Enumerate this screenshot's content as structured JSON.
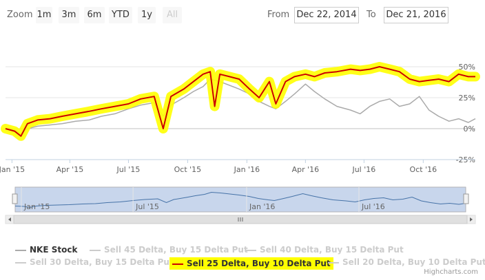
{
  "rangeSelector": {
    "zoom_label": "Zoom",
    "buttons": [
      {
        "label": "1m",
        "enabled": true
      },
      {
        "label": "3m",
        "enabled": true
      },
      {
        "label": "6m",
        "enabled": true
      },
      {
        "label": "YTD",
        "enabled": true
      },
      {
        "label": "1y",
        "enabled": true
      },
      {
        "label": "All",
        "enabled": false
      }
    ],
    "from_label": "From",
    "from_value": "Dec 22, 2014",
    "to_label": "To",
    "to_value": "Dec 21, 2016"
  },
  "chart_data": {
    "type": "line",
    "x_start": "2014-12-22",
    "x_end": "2016-12-21",
    "y_ticks": [
      -25,
      0,
      25,
      50
    ],
    "y_tick_labels": [
      "-25%",
      "0%",
      "25%",
      "50%"
    ],
    "ylim": [
      -25,
      50
    ],
    "x_ticks": [
      {
        "date": "2015-01-01",
        "label": "Jan '15"
      },
      {
        "date": "2015-04-01",
        "label": "Apr '15"
      },
      {
        "date": "2015-07-01",
        "label": "Jul '15"
      },
      {
        "date": "2015-10-01",
        "label": "Oct '15"
      },
      {
        "date": "2016-01-01",
        "label": "Jan '16"
      },
      {
        "date": "2016-04-01",
        "label": "Apr '16"
      },
      {
        "date": "2016-07-01",
        "label": "Jul '16"
      },
      {
        "date": "2016-10-01",
        "label": "Oct '16"
      }
    ],
    "navigator_ticks": [
      {
        "date": "2015-01-01",
        "label": "Jan '15"
      },
      {
        "date": "2015-07-01",
        "label": "Jul '15"
      },
      {
        "date": "2016-01-01",
        "label": "Jan '16"
      },
      {
        "date": "2016-07-01",
        "label": "Jul '16"
      }
    ],
    "grid": true,
    "legend_position": "bottom",
    "series": [
      {
        "name": "NKE Stock",
        "color": "#aaaaaa",
        "visible": true,
        "points": [
          [
            "2014-12-22",
            0
          ],
          [
            "2015-01-05",
            -1
          ],
          [
            "2015-01-15",
            -4
          ],
          [
            "2015-01-25",
            0
          ],
          [
            "2015-02-10",
            2
          ],
          [
            "2015-03-01",
            3
          ],
          [
            "2015-03-20",
            4
          ],
          [
            "2015-04-10",
            6
          ],
          [
            "2015-05-01",
            7
          ],
          [
            "2015-05-20",
            10
          ],
          [
            "2015-06-10",
            12
          ],
          [
            "2015-07-01",
            16
          ],
          [
            "2015-07-20",
            19
          ],
          [
            "2015-08-10",
            21
          ],
          [
            "2015-08-24",
            10
          ],
          [
            "2015-09-05",
            19
          ],
          [
            "2015-09-25",
            25
          ],
          [
            "2015-10-10",
            30
          ],
          [
            "2015-10-25",
            34
          ],
          [
            "2015-11-05",
            40
          ],
          [
            "2015-11-20",
            38
          ],
          [
            "2015-12-05",
            35
          ],
          [
            "2015-12-20",
            32
          ],
          [
            "2016-01-05",
            28
          ],
          [
            "2016-01-20",
            22
          ],
          [
            "2016-02-05",
            18
          ],
          [
            "2016-02-15",
            16
          ],
          [
            "2016-03-01",
            22
          ],
          [
            "2016-03-15",
            28
          ],
          [
            "2016-04-01",
            36
          ],
          [
            "2016-04-15",
            30
          ],
          [
            "2016-05-01",
            24
          ],
          [
            "2016-05-20",
            18
          ],
          [
            "2016-06-10",
            15
          ],
          [
            "2016-06-25",
            12
          ],
          [
            "2016-07-10",
            18
          ],
          [
            "2016-07-25",
            22
          ],
          [
            "2016-08-10",
            24
          ],
          [
            "2016-08-25",
            18
          ],
          [
            "2016-09-10",
            20
          ],
          [
            "2016-09-25",
            26
          ],
          [
            "2016-10-10",
            15
          ],
          [
            "2016-10-25",
            10
          ],
          [
            "2016-11-10",
            6
          ],
          [
            "2016-11-25",
            8
          ],
          [
            "2016-12-10",
            5
          ],
          [
            "2016-12-21",
            8
          ]
        ]
      },
      {
        "name": "Sell 45 Delta, Buy 15 Delta Put",
        "color": "#cccccc",
        "visible": false
      },
      {
        "name": "Sell 40 Delta, Buy 15 Delta Put",
        "color": "#cccccc",
        "visible": false
      },
      {
        "name": "Sell 30 Delta, Buy 15 Delta Put",
        "color": "#cccccc",
        "visible": false
      },
      {
        "name": "Sell 25 Delta, Buy 10 Delta Put",
        "color": "#cc0000",
        "visible": true,
        "highlighted": true,
        "points": [
          [
            "2014-12-22",
            0
          ],
          [
            "2015-01-05",
            -2
          ],
          [
            "2015-01-15",
            -6
          ],
          [
            "2015-01-25",
            4
          ],
          [
            "2015-02-10",
            7
          ],
          [
            "2015-03-01",
            8
          ],
          [
            "2015-03-20",
            10
          ],
          [
            "2015-04-10",
            12
          ],
          [
            "2015-05-01",
            14
          ],
          [
            "2015-05-20",
            16
          ],
          [
            "2015-06-10",
            18
          ],
          [
            "2015-07-01",
            20
          ],
          [
            "2015-07-20",
            24
          ],
          [
            "2015-08-10",
            26
          ],
          [
            "2015-08-24",
            0
          ],
          [
            "2015-09-05",
            26
          ],
          [
            "2015-09-25",
            32
          ],
          [
            "2015-10-10",
            38
          ],
          [
            "2015-10-25",
            44
          ],
          [
            "2015-11-05",
            46
          ],
          [
            "2015-11-12",
            18
          ],
          [
            "2015-11-20",
            44
          ],
          [
            "2015-12-05",
            42
          ],
          [
            "2015-12-20",
            40
          ],
          [
            "2016-01-05",
            32
          ],
          [
            "2016-01-20",
            25
          ],
          [
            "2016-02-05",
            38
          ],
          [
            "2016-02-15",
            20
          ],
          [
            "2016-03-01",
            38
          ],
          [
            "2016-03-15",
            42
          ],
          [
            "2016-04-01",
            44
          ],
          [
            "2016-04-15",
            42
          ],
          [
            "2016-05-01",
            45
          ],
          [
            "2016-05-20",
            46
          ],
          [
            "2016-06-10",
            48
          ],
          [
            "2016-06-25",
            47
          ],
          [
            "2016-07-10",
            48
          ],
          [
            "2016-07-25",
            50
          ],
          [
            "2016-08-10",
            48
          ],
          [
            "2016-08-25",
            46
          ],
          [
            "2016-09-10",
            40
          ],
          [
            "2016-09-25",
            38
          ],
          [
            "2016-10-10",
            39
          ],
          [
            "2016-10-25",
            40
          ],
          [
            "2016-11-10",
            38
          ],
          [
            "2016-11-25",
            44
          ],
          [
            "2016-12-10",
            42
          ],
          [
            "2016-12-21",
            42
          ]
        ]
      },
      {
        "name": "Sell 20 Delta, Buy 10 Delta Put",
        "color": "#cccccc",
        "visible": false
      }
    ]
  },
  "credits": "Highcharts.com"
}
